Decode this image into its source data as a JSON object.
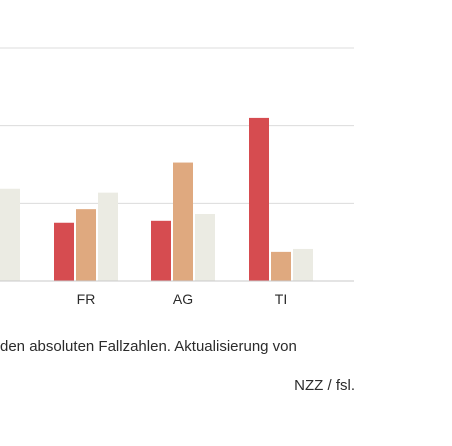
{
  "chart_data": {
    "type": "bar",
    "categories": [
      "",
      "FR",
      "AG",
      "TI"
    ],
    "series": [
      {
        "values": [
          null,
          0.6,
          0.62,
          1.68
        ]
      },
      {
        "values": [
          null,
          0.74,
          1.22,
          0.3
        ]
      },
      {
        "values": [
          0.95,
          0.91,
          0.69,
          0.33
        ]
      }
    ],
    "ylim": [
      0,
      2.4
    ],
    "grid": true,
    "colors": [
      "#d64c50",
      "#dfa97f",
      "#ebebe3"
    ],
    "gridColor": "#dcdcdc",
    "baselineColor": "#c8c8c8"
  },
  "footnote": "den absoluten Fallzahlen. Aktualisierung von",
  "source": "NZZ / fsl."
}
